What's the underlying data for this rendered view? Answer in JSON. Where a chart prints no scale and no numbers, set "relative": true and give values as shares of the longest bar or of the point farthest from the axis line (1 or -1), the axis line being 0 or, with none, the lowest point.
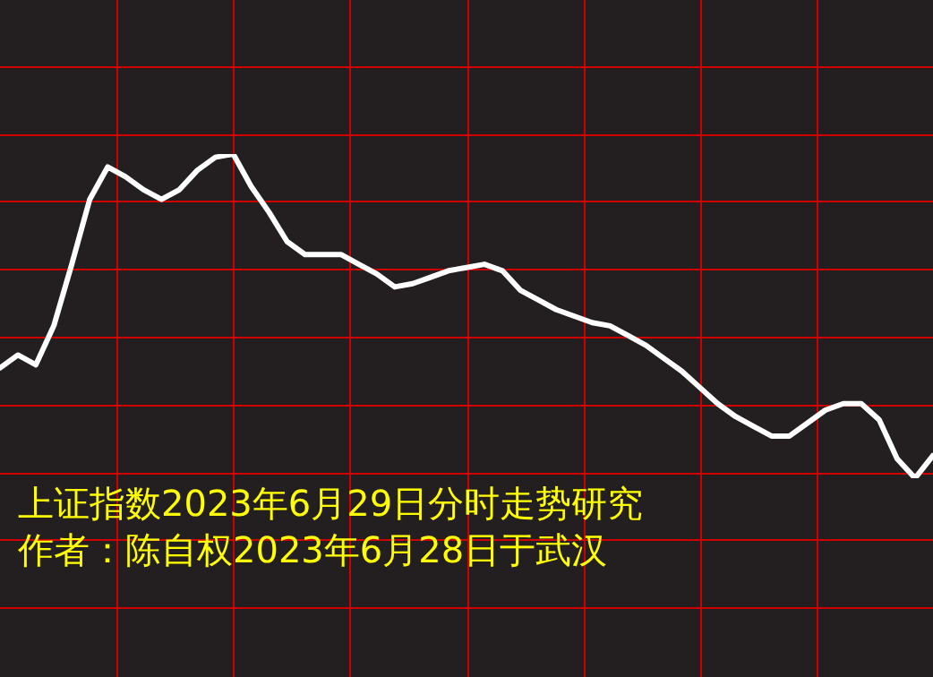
{
  "chart_data": {
    "type": "line",
    "relative": true,
    "grid": true,
    "legend": false,
    "marker": "none",
    "line_style": "solid",
    "categories": [
      null,
      null,
      null,
      null,
      null,
      null,
      null,
      null,
      null,
      null,
      null,
      null,
      null,
      null,
      null,
      null,
      null,
      null,
      null,
      null,
      null,
      null,
      null,
      null,
      null,
      null,
      null,
      null,
      null,
      null,
      null,
      null,
      null,
      null,
      null,
      null,
      null,
      null,
      null,
      null,
      null,
      null,
      null,
      null,
      null,
      null,
      null,
      null,
      null,
      null,
      null,
      null,
      null
    ],
    "series": [
      {
        "color": "#ffffff",
        "values": [
          0.34,
          0.38,
          0.35,
          0.47,
          0.66,
          0.86,
          0.96,
          0.93,
          0.89,
          0.86,
          0.89,
          0.95,
          0.99,
          1,
          0.9,
          0.82,
          0.73,
          0.69,
          0.69,
          0.69,
          0.66,
          0.63,
          0.59,
          0.6,
          0.62,
          0.64,
          0.65,
          0.66,
          0.64,
          0.58,
          0.55,
          0.52,
          0.5,
          0.48,
          0.47,
          0.44,
          0.41,
          0.37,
          0.33,
          0.28,
          0.23,
          0.19,
          0.16,
          0.13,
          0.13,
          0.17,
          0.21,
          0.23,
          0.23,
          0.18,
          0.06,
          0,
          0.07
        ]
      }
    ],
    "annotations": [
      "上证指数2023年6月29日分时走势研究",
      "作者：陈自权2023年6月28日于武汉"
    ]
  }
}
